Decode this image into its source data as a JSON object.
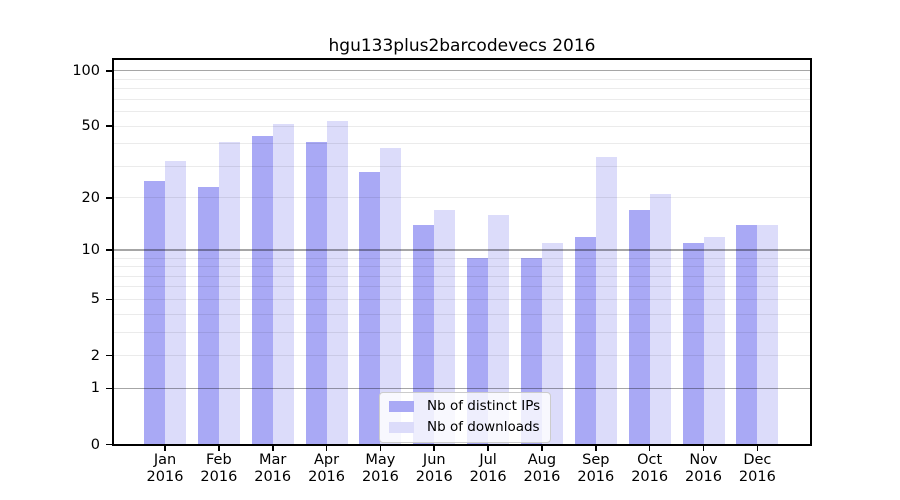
{
  "chart_data": {
    "type": "bar",
    "title": "hgu133plus2barcodevecs 2016",
    "months": [
      "Jan",
      "Feb",
      "Mar",
      "Apr",
      "May",
      "Jun",
      "Jul",
      "Aug",
      "Sep",
      "Oct",
      "Nov",
      "Dec"
    ],
    "year": "2016",
    "categories": [
      "Jan 2016",
      "Feb 2016",
      "Mar 2016",
      "Apr 2016",
      "May 2016",
      "Jun 2016",
      "Jul 2016",
      "Aug 2016",
      "Sep 2016",
      "Oct 2016",
      "Nov 2016",
      "Dec 2016"
    ],
    "series": [
      {
        "name": "Nb of distinct IPs",
        "color": "#a9a9f5",
        "values": [
          25,
          23,
          44,
          41,
          28,
          14,
          9,
          9,
          12,
          17,
          11,
          14
        ]
      },
      {
        "name": "Nb of downloads",
        "color": "#dcdcfa",
        "values": [
          32,
          41,
          51,
          53,
          38,
          17,
          16,
          11,
          34,
          21,
          12,
          14
        ]
      }
    ],
    "y_axis": {
      "scale": "log10(1+v)",
      "ticks": [
        0,
        1,
        2,
        5,
        10,
        20,
        50,
        100
      ],
      "minor_gridlines": [
        2,
        3,
        4,
        5,
        6,
        7,
        8,
        9,
        20,
        30,
        40,
        50,
        60,
        70,
        80,
        90
      ],
      "major_gridlines": [
        1,
        10,
        100
      ],
      "ylim": [
        0,
        117
      ]
    },
    "legend": {
      "position": "lower center"
    },
    "grid": "on, drawn above bars"
  }
}
